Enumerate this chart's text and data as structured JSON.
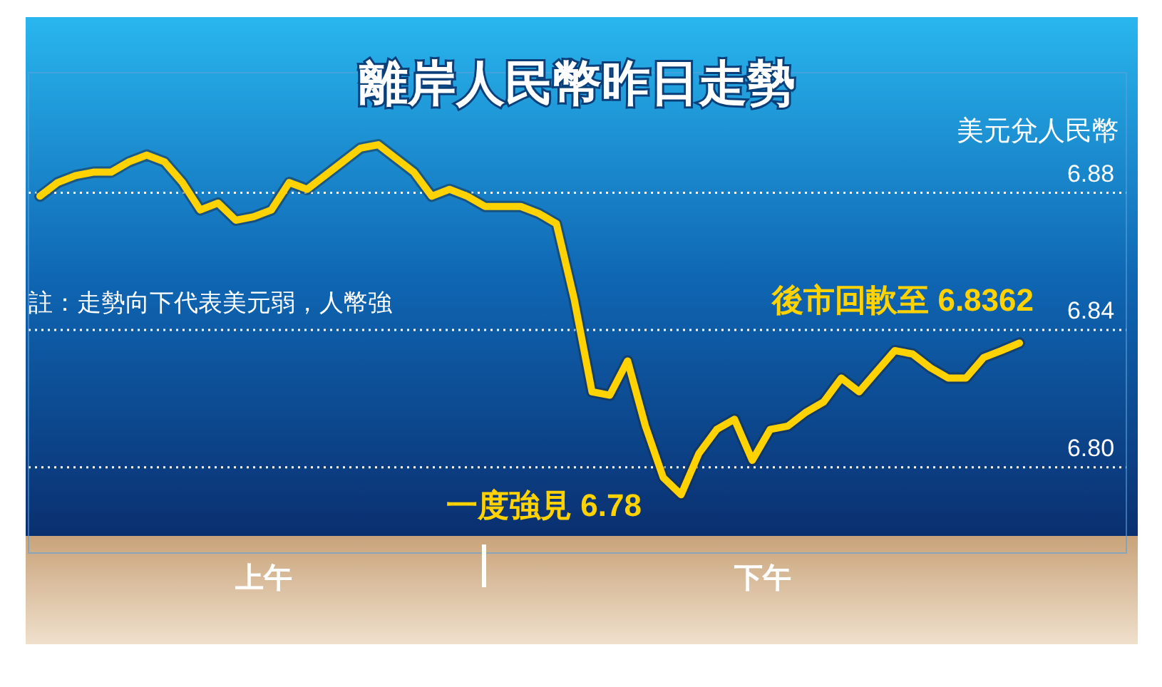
{
  "chart_data": {
    "type": "line",
    "title": "離岸人民幣昨日走勢",
    "ylabel": "美元兌人民幣",
    "annotations": [
      "註：走勢向下代表美元弱，人幣強",
      "後市回軟至 6.8362",
      "一度強見 6.78",
      "上午",
      "下午"
    ],
    "categories": [
      null,
      null,
      null,
      null,
      null,
      null,
      null,
      null,
      null,
      null,
      null,
      null,
      null,
      null,
      null,
      null,
      null,
      null,
      null,
      null,
      null,
      null,
      null,
      null,
      null,
      null,
      null,
      null,
      null,
      null,
      null,
      null,
      null,
      null,
      null,
      null,
      null,
      null,
      null,
      null,
      null,
      null,
      null,
      null,
      null,
      null,
      null,
      null,
      null,
      null,
      null,
      null,
      null,
      null,
      null,
      null
    ],
    "series": [
      {
        "color": "#ffd200",
        "values": [
          6.879,
          6.883,
          6.885,
          6.886,
          6.886,
          6.889,
          6.891,
          6.889,
          6.883,
          6.875,
          6.877,
          6.872,
          6.873,
          6.875,
          6.883,
          6.881,
          6.885,
          6.889,
          6.893,
          6.894,
          6.89,
          6.886,
          6.879,
          6.881,
          6.879,
          6.876,
          6.876,
          6.876,
          6.874,
          6.871,
          6.849,
          6.822,
          6.821,
          6.831,
          6.812,
          6.797,
          6.792,
          6.804,
          6.811,
          6.814,
          6.802,
          6.811,
          6.812,
          6.816,
          6.819,
          6.826,
          6.822,
          6.828,
          6.834,
          6.833,
          6.829,
          6.826,
          6.826,
          6.832,
          6.834,
          6.8362
        ]
      }
    ],
    "ylim": [
      6.775,
      6.915
    ],
    "yticks": [
      {
        "value": 6.88,
        "label": "6.88"
      },
      {
        "value": 6.84,
        "label": "6.84"
      },
      {
        "value": 6.8,
        "label": "6.80"
      }
    ],
    "grid": "y",
    "line_style": "solid",
    "tick_labels": "y"
  }
}
